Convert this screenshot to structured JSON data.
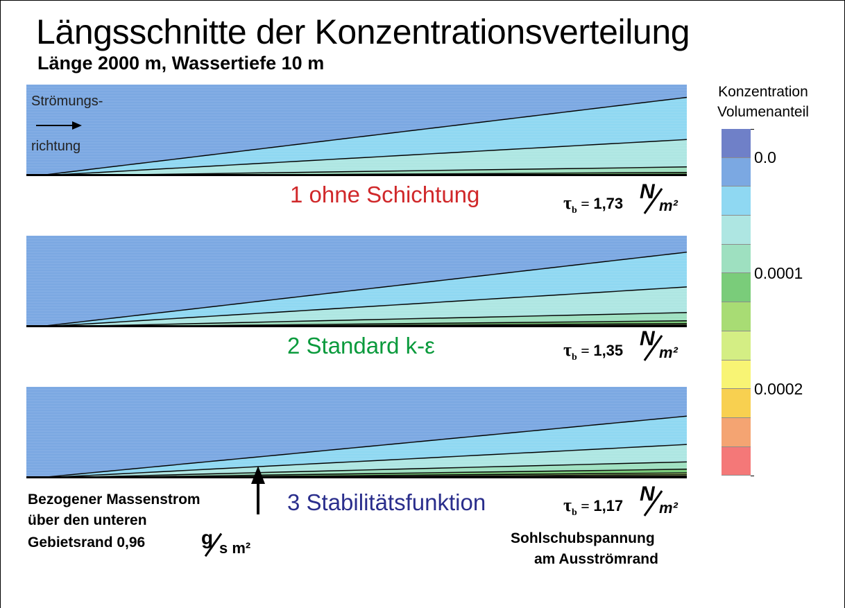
{
  "header": {
    "title": "Längsschnitte der Konzentrationsverteilung",
    "subtitle": "Länge 2000 m, Wassertiefe 10 m"
  },
  "flow": {
    "label_top": "Strömungs-",
    "label_bottom": "richtung"
  },
  "panels": [
    {
      "label": "1 ohne Schichtung",
      "label_color": "#d0282a",
      "tau_value": "1,73"
    },
    {
      "label": "2 Standard k-ε",
      "label_color": "#0a9a3c",
      "tau_value": "1,35"
    },
    {
      "label": "3 Stabilitätsfunktion",
      "label_color": "#2a2e8c",
      "tau_value": "1,17"
    }
  ],
  "tau": {
    "symbol": "τ",
    "subscript": "b",
    "equals": "=",
    "unit_num": "N",
    "unit_den": "m²"
  },
  "mass_flux": {
    "line1": "Bezogener Massenstrom",
    "line2": "über den unteren",
    "line3": "Gebietsrand 0,96",
    "unit_num": "g",
    "unit_den": "s m²"
  },
  "shear_note": {
    "line1": "Sohlschubspannung",
    "line2": "am Ausströmrand"
  },
  "legend": {
    "title_line1": "Konzentration",
    "title_line2": "Volumenanteil",
    "colors": [
      "#6f80c8",
      "#7ba8e2",
      "#8fd8f2",
      "#aee6e2",
      "#9ee0c0",
      "#7acc7a",
      "#a8dc74",
      "#d4ee84",
      "#f8f474",
      "#f8d050",
      "#f4a472",
      "#f47878"
    ],
    "tick_labels": [
      "0.0",
      "0.0001",
      "0.0002"
    ]
  }
}
